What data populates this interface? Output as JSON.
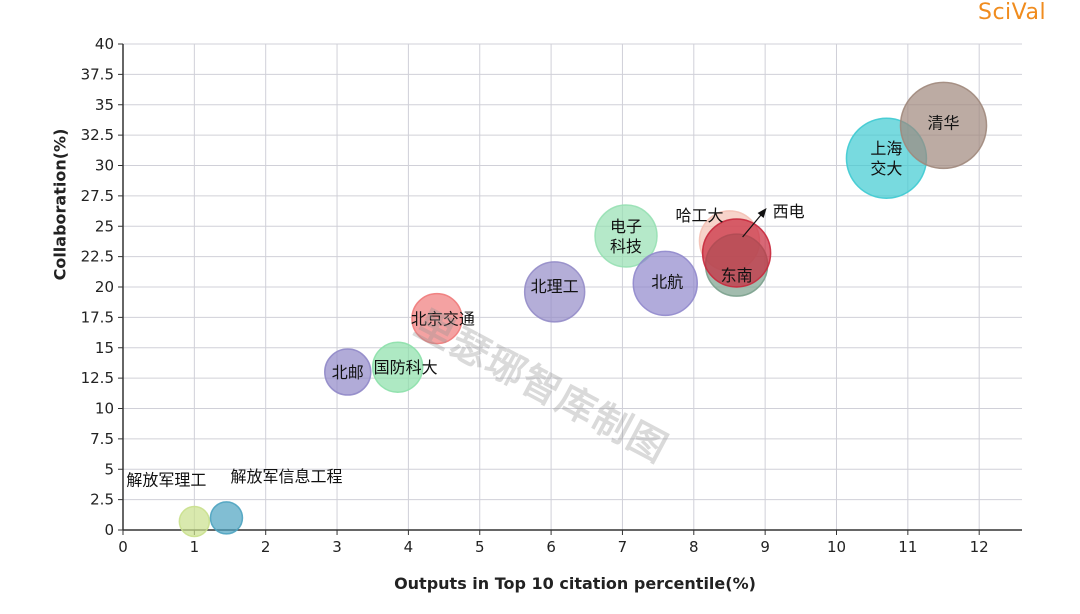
{
  "brand": {
    "text": "SciVal",
    "color": "#f08c1e"
  },
  "watermark": "里瑟琊智库制图",
  "chart_data": {
    "type": "scatter",
    "xlabel": "Outputs in Top 10 citation percentile(%)",
    "ylabel": "Collaboration(%)",
    "xlim": [
      0,
      12.6
    ],
    "ylim": [
      0,
      40
    ],
    "x_ticks": [
      "0",
      "1",
      "2",
      "3",
      "4",
      "5",
      "6",
      "7",
      "8",
      "9",
      "10",
      "11",
      "12"
    ],
    "y_ticks": [
      "0",
      "2.5",
      "5",
      "7.5",
      "10",
      "12.5",
      "15",
      "17.5",
      "20",
      "22.5",
      "25",
      "27.5",
      "30",
      "32.5",
      "35",
      "37.5",
      "40"
    ],
    "grid": true,
    "points": [
      {
        "name": "解放军理工",
        "x": 1.0,
        "y": 0.7,
        "r": 1.5,
        "color": "#c9e08c",
        "labels": [
          "解放军理工"
        ]
      },
      {
        "name": "解放军信息工程",
        "x": 1.45,
        "y": 1.0,
        "r": 1.6,
        "color": "#4ca3c0",
        "labels": [
          "解放军信息工程"
        ]
      },
      {
        "name": "北邮",
        "x": 3.15,
        "y": 13.0,
        "r": 2.3,
        "color": "#9088c8",
        "labels": [
          "北邮"
        ]
      },
      {
        "name": "国防科大",
        "x": 3.85,
        "y": 13.4,
        "r": 2.5,
        "color": "#8ce0aa",
        "labels": [
          "国防科大"
        ]
      },
      {
        "name": "北京交通",
        "x": 4.4,
        "y": 17.4,
        "r": 2.5,
        "color": "#f07a7a",
        "labels": [
          "北京交通"
        ]
      },
      {
        "name": "北理工",
        "x": 6.05,
        "y": 19.6,
        "r": 3.0,
        "color": "#948cc8",
        "labels": [
          "北理工"
        ]
      },
      {
        "name": "电子科技",
        "x": 7.05,
        "y": 24.2,
        "r": 3.1,
        "color": "#96e0b2",
        "labels": [
          "电子",
          "科技"
        ]
      },
      {
        "name": "北航",
        "x": 7.6,
        "y": 20.3,
        "r": 3.2,
        "color": "#9088cc",
        "labels": [
          "北航"
        ]
      },
      {
        "name": "哈工大",
        "x": 8.5,
        "y": 23.8,
        "r": 3.0,
        "color": "#f4c0b4",
        "labels": [
          "哈工大"
        ]
      },
      {
        "name": "东南",
        "x": 8.6,
        "y": 21.8,
        "r": 3.1,
        "color": "#7aa08c",
        "labels": [
          "东南"
        ]
      },
      {
        "name": "西电",
        "x": 8.6,
        "y": 22.8,
        "r": 3.4,
        "color": "#c8283c",
        "labels": [
          "西电"
        ]
      },
      {
        "name": "上海交大",
        "x": 10.7,
        "y": 30.6,
        "r": 4.0,
        "color": "#3ecad2",
        "labels": [
          "上海",
          "交大"
        ]
      },
      {
        "name": "清华",
        "x": 11.5,
        "y": 33.3,
        "r": 4.3,
        "color": "#a0887c",
        "labels": [
          "清华"
        ]
      }
    ]
  }
}
